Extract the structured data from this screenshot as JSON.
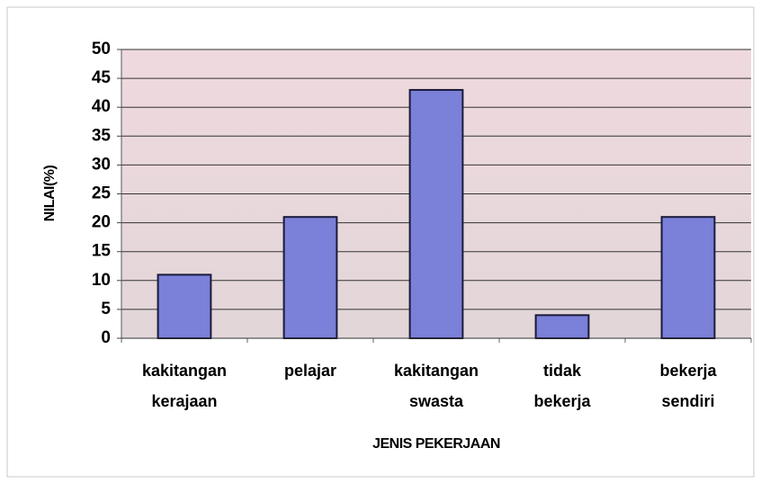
{
  "chart_data": {
    "type": "bar",
    "categories": [
      [
        "kakitangan",
        "kerajaan"
      ],
      [
        "pelajar"
      ],
      [
        "kakitangan",
        "swasta"
      ],
      [
        "tidak",
        "bekerja"
      ],
      [
        "bekerja",
        "sendiri"
      ]
    ],
    "values": [
      11,
      21,
      43,
      4,
      21
    ],
    "color": "#7b80d8",
    "ylim": [
      0,
      50
    ],
    "yticks": [
      0,
      5,
      10,
      15,
      20,
      25,
      30,
      35,
      40,
      45,
      50
    ],
    "grid": true,
    "y_label": "NILAI(%)",
    "x_label": "JENIS PEKERJAAN"
  }
}
